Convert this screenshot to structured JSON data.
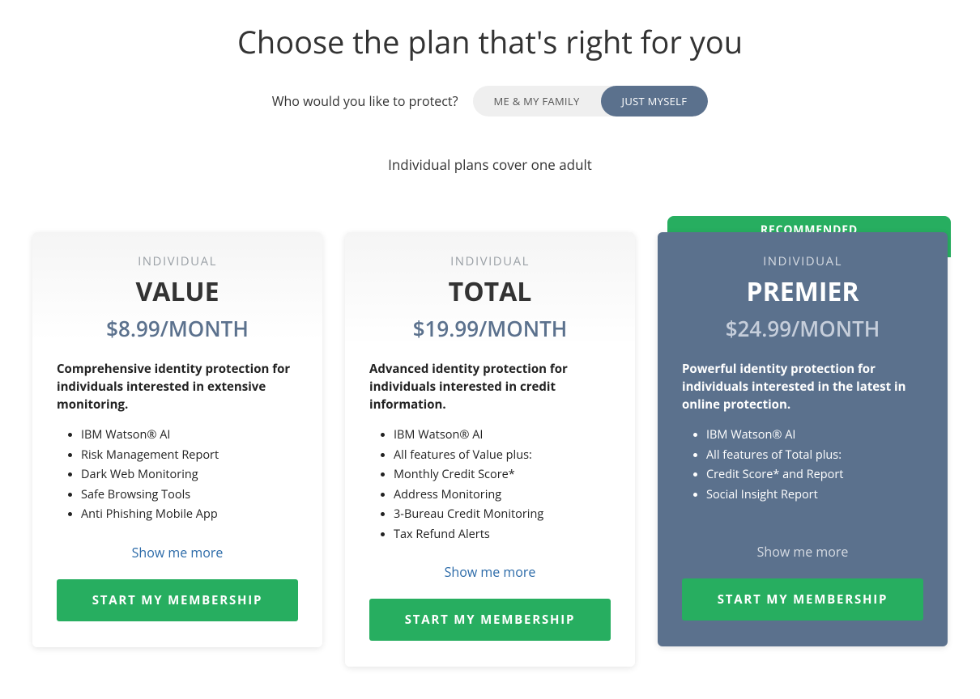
{
  "colors": {
    "accent_slate": "#5b718d",
    "cta_green": "#27ae60",
    "link_blue": "#2b6aa8",
    "muted_gray": "#9aa0a6",
    "bg_light": "#f5f5f5",
    "text_dark": "#333333",
    "white": "#ffffff"
  },
  "header": {
    "title": "Choose the plan that's right for you",
    "selector_label": "Who would you like to protect?",
    "toggle_options": [
      {
        "label": "ME & MY FAMILY",
        "active": false
      },
      {
        "label": "JUST MYSELF",
        "active": true
      }
    ],
    "subhead": "Individual plans cover one adult"
  },
  "labels": {
    "show_more": "Show me more",
    "cta": "START MY MEMBERSHIP",
    "recommended": "RECOMMENDED"
  },
  "plans": [
    {
      "tier": "INDIVIDUAL",
      "name": "VALUE",
      "price": "$8.99/MONTH",
      "desc": "Comprehensive identity protection for individuals interested in extensive monitoring.",
      "features": [
        "IBM Watson® AI",
        "Risk Management Report",
        "Dark Web Monitoring",
        "Safe Browsing Tools",
        "Anti Phishing Mobile App"
      ],
      "recommended": false,
      "theme": "light"
    },
    {
      "tier": "INDIVIDUAL",
      "name": "TOTAL",
      "price": "$19.99/MONTH",
      "desc": "Advanced identity protection for individuals interested in credit information.",
      "features": [
        "IBM Watson® AI",
        "All features of Value plus:",
        "Monthly Credit Score*",
        "Address Monitoring",
        "3-Bureau Credit Monitoring",
        "Tax Refund Alerts"
      ],
      "recommended": false,
      "theme": "light"
    },
    {
      "tier": "INDIVIDUAL",
      "name": "PREMIER",
      "price": "$24.99/MONTH",
      "desc": "Powerful identity protection for individuals interested in the latest in online protection.",
      "features": [
        "IBM Watson® AI",
        "All features of Total plus:",
        "Credit Score* and Report",
        "Social Insight Report"
      ],
      "recommended": true,
      "theme": "dark"
    }
  ]
}
